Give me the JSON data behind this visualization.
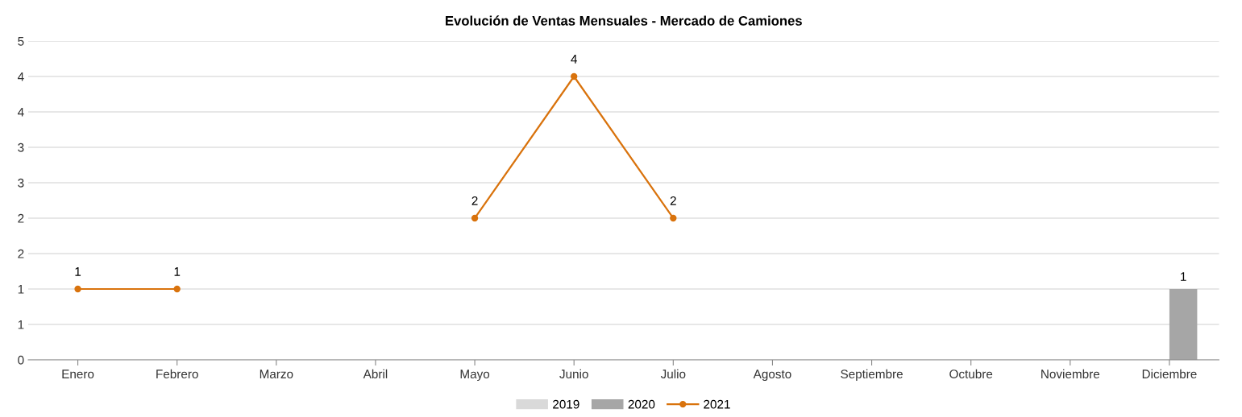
{
  "chart_data": {
    "type": "bar",
    "title": "Evolución de Ventas Mensuales - Mercado de Camiones",
    "categories": [
      "Enero",
      "Febrero",
      "Marzo",
      "Abril",
      "Mayo",
      "Junio",
      "Julio",
      "Agosto",
      "Septiembre",
      "Octubre",
      "Noviembre",
      "Diciembre"
    ],
    "series": [
      {
        "name": "2019",
        "color": "#d9d9d9",
        "values": [
          null,
          null,
          null,
          null,
          null,
          null,
          null,
          null,
          null,
          null,
          null,
          null
        ]
      },
      {
        "name": "2020",
        "color": "#a6a6a6",
        "values": [
          null,
          null,
          null,
          null,
          null,
          null,
          null,
          null,
          null,
          null,
          null,
          1
        ]
      },
      {
        "name": "2021",
        "type": "line",
        "color": "#d9730d",
        "marker": "circle",
        "values": [
          1,
          1,
          null,
          null,
          2,
          4,
          2,
          null,
          null,
          null,
          null,
          null
        ]
      }
    ],
    "ylim": [
      0,
      4.5
    ],
    "yticks": [
      0,
      {
        "value": 0.5,
        "label": "1"
      },
      1,
      {
        "value": 1.5,
        "label": "2"
      },
      2,
      {
        "value": 2.5,
        "label": "3"
      },
      3,
      {
        "value": 3.5,
        "label": "4"
      },
      4,
      {
        "value": 4.5,
        "label": "5"
      }
    ],
    "grid": "y",
    "legend": "bottom",
    "data_labels": true
  }
}
